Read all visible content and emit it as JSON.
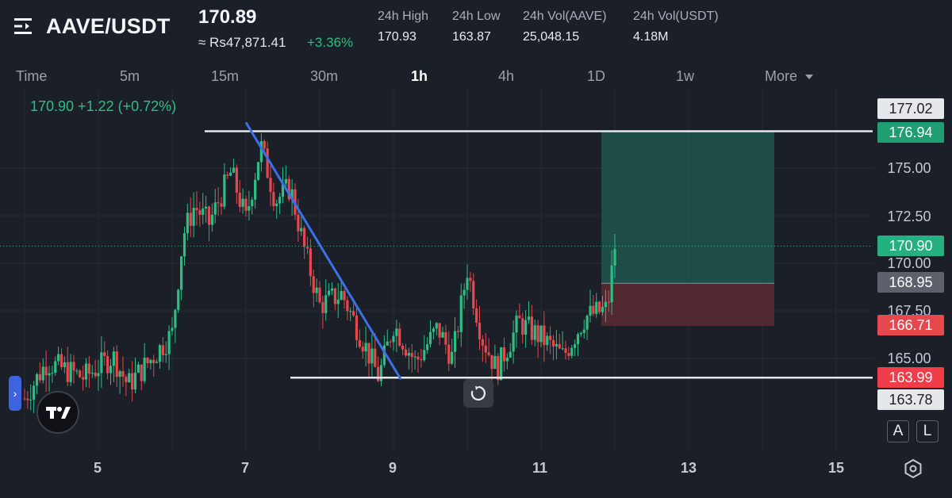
{
  "header": {
    "pair": "AAVE/USDT",
    "last_price": "170.89",
    "fiat_price": "≈ Rs47,871.41",
    "change_pct": "+3.36%",
    "stats": [
      {
        "label": "24h High",
        "value": "170.93"
      },
      {
        "label": "24h Low",
        "value": "163.87"
      },
      {
        "label": "24h Vol(AAVE)",
        "value": "25,048.15"
      },
      {
        "label": "24h Vol(USDT)",
        "value": "4.18M"
      }
    ]
  },
  "timeframes": {
    "items": [
      "Time",
      "5m",
      "15m",
      "30m",
      "1h",
      "4h",
      "1D",
      "1w"
    ],
    "active": "1h",
    "more_label": "More"
  },
  "legend": {
    "ohlc_text": "170.90  +1.22 (+0.72%)"
  },
  "price_axis": {
    "ticks": [
      "175.00",
      "172.50",
      "170.00",
      "167.50",
      "165.00"
    ],
    "labels": {
      "top_partial": "177.02",
      "resistance": "176.94",
      "current": "170.90",
      "entry": "168.95",
      "stop": "166.71",
      "support": "163.99",
      "low_partial": "163.78"
    }
  },
  "time_axis": {
    "ticks": [
      "5",
      "7",
      "9",
      "11",
      "13",
      "15"
    ]
  },
  "buttons": {
    "auto_label": "A",
    "log_label": "L"
  },
  "colors": {
    "background": "#1b1f27",
    "up": "#2ebd85",
    "down": "#e5484d",
    "trendline": "#3d6fe8",
    "hline": "#e6e7ea"
  },
  "icons": {
    "menu": "menu-icon",
    "collapse": "chevron-right-icon",
    "logo": "tradingview-logo",
    "reset": "reset-icon",
    "settings": "settings-icon",
    "more": "caret-down-icon"
  },
  "chart_data": {
    "type": "candlestick",
    "series": [
      {
        "name": "AAVE/USDT 1h",
        "close_last": 170.9
      }
    ],
    "annotations": {
      "resistance_level": 176.94,
      "support_level": 163.99,
      "position_entry": 168.95,
      "position_stop": 166.71,
      "position_target": 176.94,
      "trendline": {
        "from": [
          7.0,
          177.4
        ],
        "to": [
          9.1,
          163.9
        ]
      }
    },
    "ylim": [
      162.8,
      178.0
    ],
    "xlim": [
      3.9,
      15.7
    ]
  }
}
